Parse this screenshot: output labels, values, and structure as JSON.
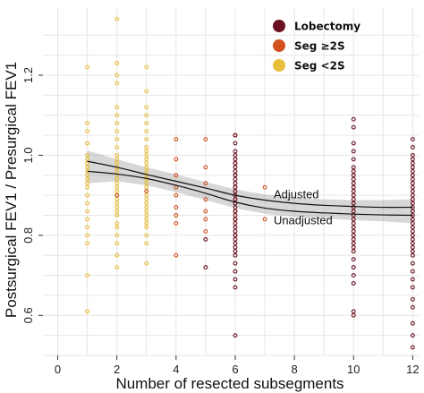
{
  "chart_data": {
    "type": "scatter",
    "title": "",
    "xlabel": "Number of resected subsegments",
    "ylabel": "Postsurgical FEV1 / Presurgical FEV1",
    "xlim": [
      -0.5,
      12.2
    ],
    "ylim": [
      0.5,
      1.37
    ],
    "x_ticks": [
      0,
      2,
      4,
      6,
      8,
      10,
      12
    ],
    "y_ticks": [
      0.6,
      0.8,
      1.0,
      1.2
    ],
    "grid": true,
    "legend_position": "top-right",
    "legend": [
      {
        "label": "Lobectomy",
        "color": "#6b1020"
      },
      {
        "label": "Seg ≥2S",
        "color": "#d2511f"
      },
      {
        "label": "Seg <2S",
        "color": "#e8be3a"
      }
    ],
    "series": [
      {
        "name": "Seg <2S",
        "color": "#e8be3a",
        "points": [
          [
            1,
            1.22
          ],
          [
            1,
            1.08
          ],
          [
            1,
            1.06
          ],
          [
            1,
            1.03
          ],
          [
            1,
            1.0
          ],
          [
            1,
            0.99
          ],
          [
            1,
            0.98
          ],
          [
            1,
            0.97
          ],
          [
            1,
            0.96
          ],
          [
            1,
            0.95
          ],
          [
            1,
            0.94
          ],
          [
            1,
            0.93
          ],
          [
            1,
            0.92
          ],
          [
            1,
            0.9
          ],
          [
            1,
            0.88
          ],
          [
            1,
            0.86
          ],
          [
            1,
            0.84
          ],
          [
            1,
            0.82
          ],
          [
            1,
            0.8
          ],
          [
            1,
            0.78
          ],
          [
            1,
            0.7
          ],
          [
            1,
            0.61
          ],
          [
            2,
            1.34
          ],
          [
            2,
            1.23
          ],
          [
            2,
            1.2
          ],
          [
            2,
            1.18
          ],
          [
            2,
            1.12
          ],
          [
            2,
            1.1
          ],
          [
            2,
            1.08
          ],
          [
            2,
            1.06
          ],
          [
            2,
            1.04
          ],
          [
            2,
            1.02
          ],
          [
            2,
            1.0
          ],
          [
            2,
            0.99
          ],
          [
            2,
            0.98
          ],
          [
            2,
            0.97
          ],
          [
            2,
            0.96
          ],
          [
            2,
            0.95
          ],
          [
            2,
            0.94
          ],
          [
            2,
            0.93
          ],
          [
            2,
            0.92
          ],
          [
            2,
            0.91
          ],
          [
            2,
            0.9
          ],
          [
            2,
            0.89
          ],
          [
            2,
            0.88
          ],
          [
            2,
            0.87
          ],
          [
            2,
            0.86
          ],
          [
            2,
            0.85
          ],
          [
            2,
            0.83
          ],
          [
            2,
            0.82
          ],
          [
            2,
            0.8
          ],
          [
            2,
            0.78
          ],
          [
            2,
            0.75
          ],
          [
            2,
            0.72
          ],
          [
            3,
            1.22
          ],
          [
            3,
            1.16
          ],
          [
            3,
            1.12
          ],
          [
            3,
            1.1
          ],
          [
            3,
            1.08
          ],
          [
            3,
            1.06
          ],
          [
            3,
            1.04
          ],
          [
            3,
            1.02
          ],
          [
            3,
            1.01
          ],
          [
            3,
            1.0
          ],
          [
            3,
            0.99
          ],
          [
            3,
            0.98
          ],
          [
            3,
            0.97
          ],
          [
            3,
            0.96
          ],
          [
            3,
            0.95
          ],
          [
            3,
            0.94
          ],
          [
            3,
            0.93
          ],
          [
            3,
            0.92
          ],
          [
            3,
            0.91
          ],
          [
            3,
            0.9
          ],
          [
            3,
            0.89
          ],
          [
            3,
            0.88
          ],
          [
            3,
            0.87
          ],
          [
            3,
            0.86
          ],
          [
            3,
            0.85
          ],
          [
            3,
            0.84
          ],
          [
            3,
            0.83
          ],
          [
            3,
            0.82
          ],
          [
            3,
            0.8
          ],
          [
            3,
            0.78
          ],
          [
            3,
            0.73
          ]
        ]
      },
      {
        "name": "Seg ≥2S",
        "color": "#d2511f",
        "points": [
          [
            2,
            0.9
          ],
          [
            3,
            0.91
          ],
          [
            4,
            1.04
          ],
          [
            4,
            0.99
          ],
          [
            4,
            0.95
          ],
          [
            4,
            0.92
          ],
          [
            4,
            0.9
          ],
          [
            4,
            0.87
          ],
          [
            4,
            0.85
          ],
          [
            4,
            0.83
          ],
          [
            4,
            0.75
          ],
          [
            5,
            1.04
          ],
          [
            5,
            0.97
          ],
          [
            5,
            0.93
          ],
          [
            5,
            0.89
          ],
          [
            5,
            0.86
          ],
          [
            5,
            0.84
          ],
          [
            5,
            0.81
          ],
          [
            6,
            1.05
          ],
          [
            6,
            0.98
          ],
          [
            6,
            0.95
          ],
          [
            6,
            0.92
          ],
          [
            6,
            0.89
          ],
          [
            6,
            0.86
          ],
          [
            6,
            0.84
          ],
          [
            6,
            0.8
          ],
          [
            7,
            0.92
          ],
          [
            7,
            0.84
          ]
        ]
      },
      {
        "name": "Lobectomy",
        "color": "#6b1020",
        "points": [
          [
            5,
            0.79
          ],
          [
            5,
            0.72
          ],
          [
            6,
            1.05
          ],
          [
            6,
            1.03
          ],
          [
            6,
            1.01
          ],
          [
            6,
            1.0
          ],
          [
            6,
            0.99
          ],
          [
            6,
            0.98
          ],
          [
            6,
            0.97
          ],
          [
            6,
            0.96
          ],
          [
            6,
            0.95
          ],
          [
            6,
            0.94
          ],
          [
            6,
            0.93
          ],
          [
            6,
            0.92
          ],
          [
            6,
            0.91
          ],
          [
            6,
            0.9
          ],
          [
            6,
            0.89
          ],
          [
            6,
            0.88
          ],
          [
            6,
            0.87
          ],
          [
            6,
            0.86
          ],
          [
            6,
            0.85
          ],
          [
            6,
            0.84
          ],
          [
            6,
            0.83
          ],
          [
            6,
            0.82
          ],
          [
            6,
            0.81
          ],
          [
            6,
            0.8
          ],
          [
            6,
            0.79
          ],
          [
            6,
            0.78
          ],
          [
            6,
            0.77
          ],
          [
            6,
            0.76
          ],
          [
            6,
            0.75
          ],
          [
            6,
            0.73
          ],
          [
            6,
            0.71
          ],
          [
            6,
            0.69
          ],
          [
            6,
            0.67
          ],
          [
            6,
            0.55
          ],
          [
            10,
            1.09
          ],
          [
            10,
            1.07
          ],
          [
            10,
            1.03
          ],
          [
            10,
            1.01
          ],
          [
            10,
            0.99
          ],
          [
            10,
            0.97
          ],
          [
            10,
            0.96
          ],
          [
            10,
            0.95
          ],
          [
            10,
            0.94
          ],
          [
            10,
            0.93
          ],
          [
            10,
            0.92
          ],
          [
            10,
            0.91
          ],
          [
            10,
            0.9
          ],
          [
            10,
            0.89
          ],
          [
            10,
            0.88
          ],
          [
            10,
            0.87
          ],
          [
            10,
            0.86
          ],
          [
            10,
            0.85
          ],
          [
            10,
            0.84
          ],
          [
            10,
            0.83
          ],
          [
            10,
            0.82
          ],
          [
            10,
            0.81
          ],
          [
            10,
            0.8
          ],
          [
            10,
            0.79
          ],
          [
            10,
            0.78
          ],
          [
            10,
            0.77
          ],
          [
            10,
            0.76
          ],
          [
            10,
            0.74
          ],
          [
            10,
            0.72
          ],
          [
            10,
            0.7
          ],
          [
            10,
            0.68
          ],
          [
            10,
            0.61
          ],
          [
            10,
            0.6
          ],
          [
            12,
            1.04
          ],
          [
            12,
            1.02
          ],
          [
            12,
            1.0
          ],
          [
            12,
            0.99
          ],
          [
            12,
            0.98
          ],
          [
            12,
            0.97
          ],
          [
            12,
            0.96
          ],
          [
            12,
            0.95
          ],
          [
            12,
            0.94
          ],
          [
            12,
            0.93
          ],
          [
            12,
            0.92
          ],
          [
            12,
            0.91
          ],
          [
            12,
            0.9
          ],
          [
            12,
            0.89
          ],
          [
            12,
            0.88
          ],
          [
            12,
            0.87
          ],
          [
            12,
            0.86
          ],
          [
            12,
            0.85
          ],
          [
            12,
            0.84
          ],
          [
            12,
            0.83
          ],
          [
            12,
            0.82
          ],
          [
            12,
            0.81
          ],
          [
            12,
            0.8
          ],
          [
            12,
            0.79
          ],
          [
            12,
            0.78
          ],
          [
            12,
            0.77
          ],
          [
            12,
            0.76
          ],
          [
            12,
            0.75
          ],
          [
            12,
            0.73
          ],
          [
            12,
            0.71
          ],
          [
            12,
            0.69
          ],
          [
            12,
            0.67
          ],
          [
            12,
            0.64
          ],
          [
            12,
            0.62
          ],
          [
            12,
            0.58
          ],
          [
            12,
            0.55
          ],
          [
            12,
            0.52
          ]
        ]
      }
    ],
    "curves": [
      {
        "name": "Adjusted",
        "x": [
          1,
          2,
          3,
          4,
          5,
          6,
          7,
          8,
          9,
          10,
          11,
          12
        ],
        "y": [
          0.985,
          0.97,
          0.952,
          0.935,
          0.918,
          0.9,
          0.888,
          0.88,
          0.875,
          0.872,
          0.87,
          0.87
        ],
        "label_at": [
          7.3,
          0.893
        ]
      },
      {
        "name": "Unadjusted",
        "x": [
          1,
          2,
          3,
          4,
          5,
          6,
          7,
          8,
          9,
          10,
          11,
          12
        ],
        "y": [
          0.96,
          0.953,
          0.942,
          0.925,
          0.905,
          0.883,
          0.868,
          0.86,
          0.856,
          0.853,
          0.851,
          0.85
        ],
        "label_at": [
          7.3,
          0.828
        ]
      }
    ],
    "confidence_band": {
      "x": [
        1,
        2,
        3,
        4,
        5,
        6,
        7,
        8,
        9,
        10,
        11,
        12
      ],
      "lower": [
        0.93,
        0.935,
        0.925,
        0.908,
        0.888,
        0.868,
        0.854,
        0.846,
        0.842,
        0.838,
        0.835,
        0.83
      ],
      "upper": [
        1.012,
        0.99,
        0.97,
        0.952,
        0.933,
        0.915,
        0.902,
        0.895,
        0.89,
        0.888,
        0.888,
        0.89
      ]
    }
  }
}
